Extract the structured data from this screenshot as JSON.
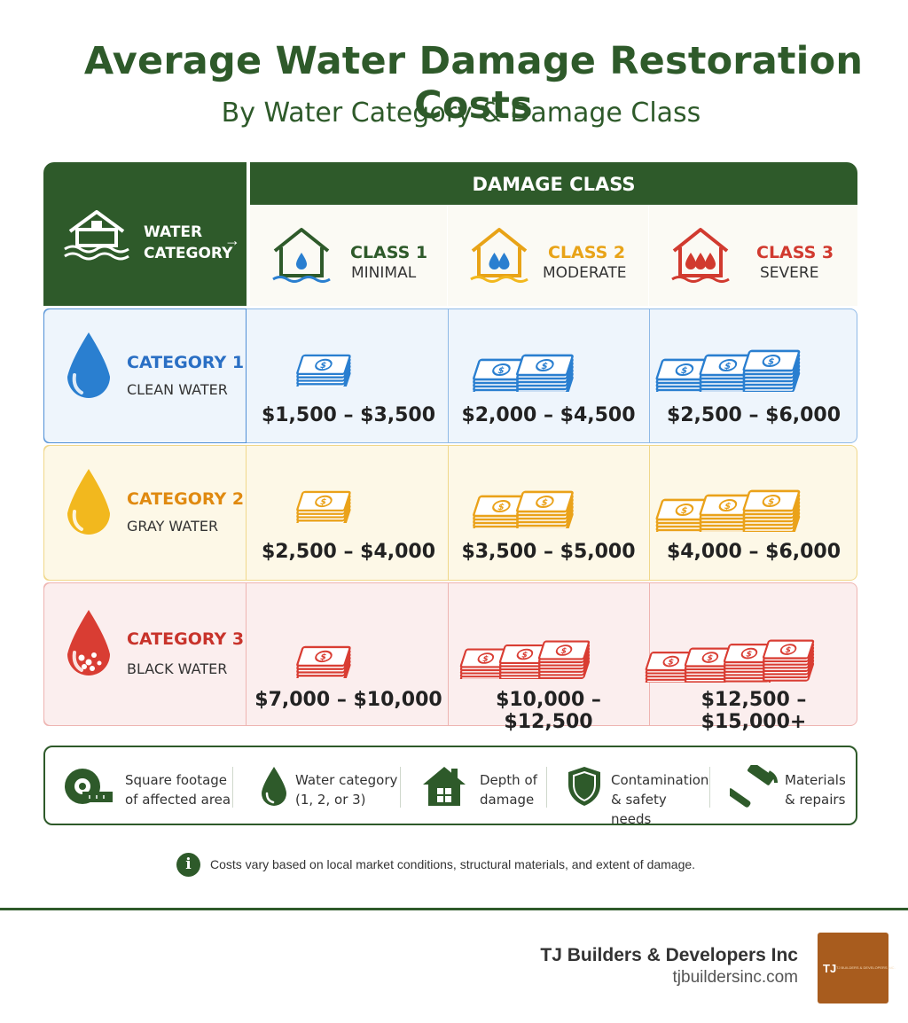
{
  "title": "Average Water Damage Restoration Costs",
  "subtitle": "By Water Category & Damage Class",
  "corner": {
    "line1": "WATER",
    "line2": "CATEGORY",
    "arrow": "→"
  },
  "damage_class_header": "DAMAGE CLASS",
  "classes": [
    {
      "title": "CLASS 1",
      "sub": "MINIMAL",
      "color": "#2e5a2a",
      "drops": 1,
      "drop_color": "#2a7fd0"
    },
    {
      "title": "CLASS 2",
      "sub": "MODERATE",
      "color": "#e8a317",
      "drops": 2,
      "drop_color": "#2a7fd0"
    },
    {
      "title": "CLASS 3",
      "sub": "SEVERE",
      "color": "#d13a2f",
      "drops": 3,
      "drop_color": "#d13a2f"
    }
  ],
  "categories": [
    {
      "title": "CATEGORY 1",
      "sub": "CLEAN WATER",
      "color": "#2a6fc4",
      "bg": "#eef5fc",
      "border": "#8fb9e6",
      "drop": "#2a7fd0"
    },
    {
      "title": "CATEGORY 2",
      "sub": "GRAY WATER",
      "color": "#e08a10",
      "bg": "#fdf8e7",
      "border": "#f0d78a",
      "drop": "#f2b81e"
    },
    {
      "title": "CATEGORY 3",
      "sub": "BLACK WATER",
      "color": "#c8332b",
      "bg": "#fbeeee",
      "border": "#eeb4b1",
      "drop": "#d93d33"
    }
  ],
  "chart_data": {
    "type": "table",
    "title": "Average Water Damage Restoration Costs",
    "subtitle": "By Water Category & Damage Class",
    "columns": [
      "CLASS 1 MINIMAL",
      "CLASS 2 MODERATE",
      "CLASS 3 SEVERE"
    ],
    "rows": [
      "CATEGORY 1 CLEAN WATER",
      "CATEGORY 2 GRAY WATER",
      "CATEGORY 3 BLACK WATER"
    ],
    "values": [
      [
        "$1,500 – $3,500",
        "$2,000 – $4,500",
        "$2,500 – $6,000"
      ],
      [
        "$2,500 – $4,000",
        "$3,500 – $5,000",
        "$4,000 – $6,000"
      ],
      [
        "$7,000 – $10,000",
        "$10,000 – $12,500",
        "$12,500 – $15,000+"
      ]
    ],
    "ranges_usd": [
      [
        [
          1500,
          3500
        ],
        [
          2000,
          4500
        ],
        [
          2500,
          6000
        ]
      ],
      [
        [
          2500,
          4000
        ],
        [
          3500,
          5000
        ],
        [
          4000,
          6000
        ]
      ],
      [
        [
          7000,
          10000
        ],
        [
          10000,
          12500
        ],
        [
          12500,
          15000
        ]
      ]
    ]
  },
  "factors": [
    {
      "line1": "Square footage",
      "line2": "of affected area",
      "icon": "tape-measure-icon"
    },
    {
      "line1": "Water category",
      "line2": "(1, 2, or 3)",
      "icon": "water-drop-icon"
    },
    {
      "line1": "Depth of",
      "line2": "damage",
      "icon": "house-icon"
    },
    {
      "line1": "Contamination",
      "line2": "& safety needs",
      "icon": "shield-icon"
    },
    {
      "line1": "Materials",
      "line2": "& repairs",
      "icon": "hammer-icon"
    }
  ],
  "note": {
    "icon": "i",
    "text": "Costs vary based on local market conditions, structural materials, and extent of damage."
  },
  "company": {
    "name": "TJ Builders & Developers Inc",
    "site": "tjbuildersinc.com",
    "logo_text": "TJ",
    "logo_small": "TJ BUILDERS & DEVELOPERS INC."
  }
}
